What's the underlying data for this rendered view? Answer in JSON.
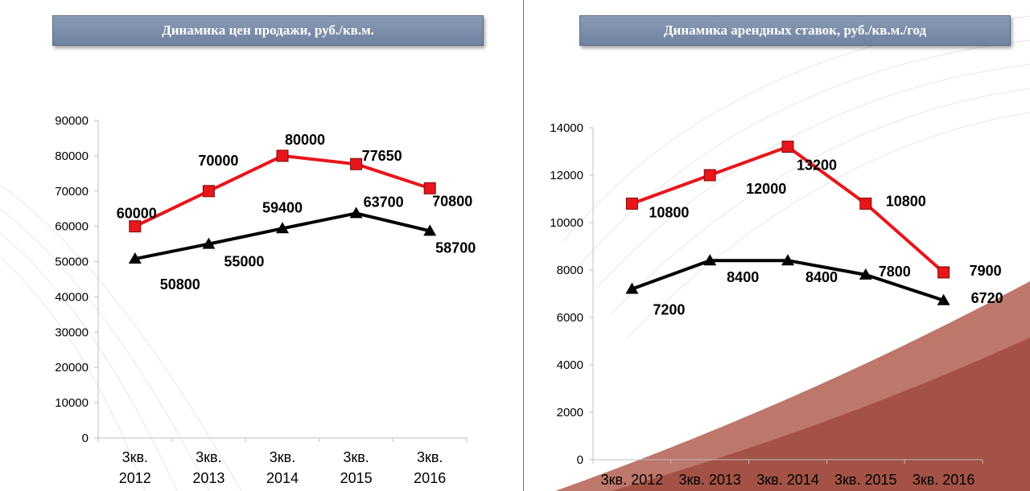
{
  "charts": {
    "sale": {
      "title": "Динамика цен продажи, руб./кв.м."
    },
    "rent": {
      "title": "Динамика арендных ставок, руб./кв.м./год"
    }
  },
  "colors": {
    "series_red": "#e8161b",
    "series_black": "#000000",
    "divider": "#c0504d",
    "title_bg": "#7d8faa"
  },
  "chart_data": [
    {
      "type": "line",
      "title": "Динамика цен продажи, руб./кв.м.",
      "categories": [
        "3кв. 2012",
        "3кв. 2013",
        "3кв. 2014",
        "3кв. 2015",
        "3кв. 2016"
      ],
      "ylim": [
        0,
        90000
      ],
      "yticks": [
        "0",
        "10000",
        "20000",
        "30000",
        "40000",
        "50000",
        "60000",
        "70000",
        "80000",
        "90000"
      ],
      "grid": false,
      "legend": "none",
      "series": [
        {
          "marker": "square",
          "color": "#e8161b",
          "values": [
            60000,
            70000,
            80000,
            77650,
            70800
          ]
        },
        {
          "marker": "triangle",
          "color": "#000000",
          "values": [
            50800,
            55000,
            59400,
            63700,
            58700
          ]
        }
      ]
    },
    {
      "type": "line",
      "title": "Динамика арендных ставок, руб./кв.м./год",
      "categories": [
        "3кв. 2012",
        "3кв. 2013",
        "3кв. 2014",
        "3кв. 2015",
        "3кв. 2016"
      ],
      "ylim": [
        0,
        14000
      ],
      "yticks": [
        "0",
        "2000",
        "4000",
        "6000",
        "8000",
        "10000",
        "12000",
        "14000"
      ],
      "grid": false,
      "legend": "none",
      "series": [
        {
          "marker": "square",
          "color": "#e8161b",
          "values": [
            10800,
            12000,
            13200,
            10800,
            7900
          ]
        },
        {
          "marker": "triangle",
          "color": "#000000",
          "values": [
            7200,
            8400,
            8400,
            7800,
            6720
          ]
        }
      ]
    }
  ]
}
